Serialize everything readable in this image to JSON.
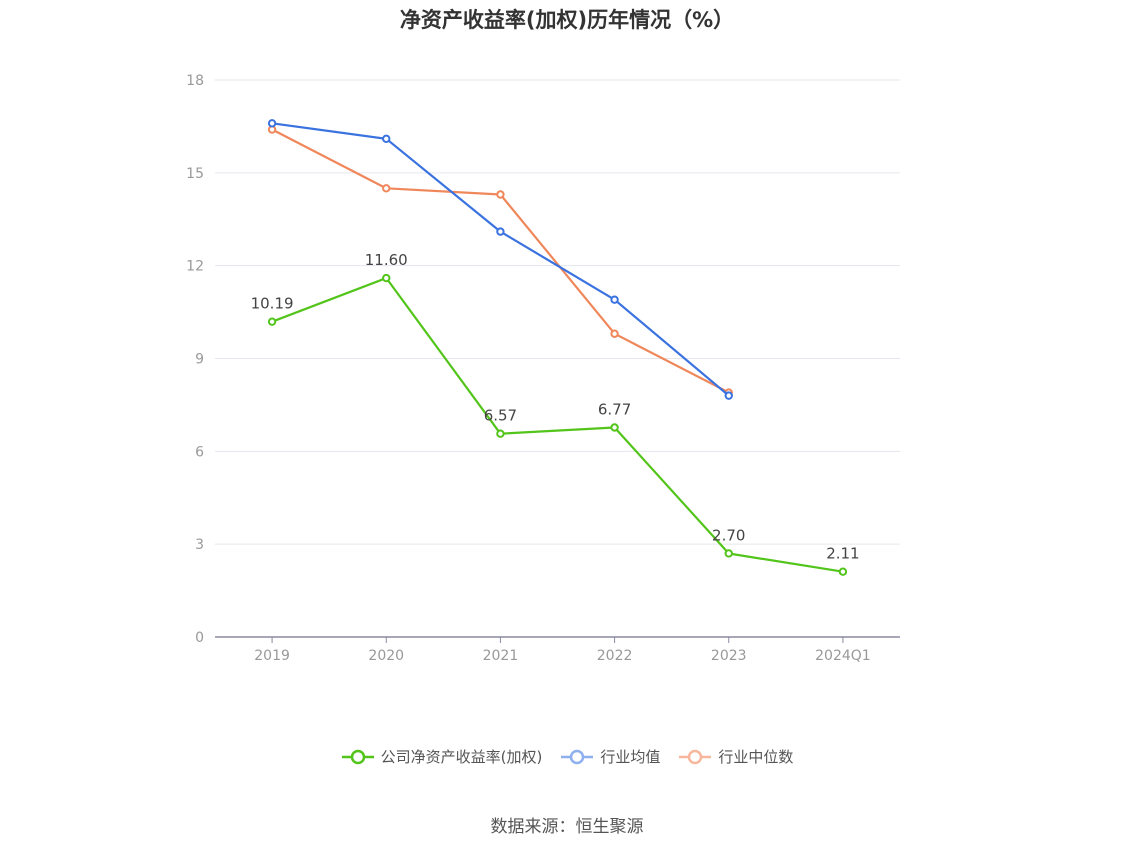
{
  "title": "净资产收益率(加权)历年情况（%）",
  "source": "数据来源：恒生聚源",
  "chart_data": {
    "type": "line",
    "categories": [
      "2019",
      "2020",
      "2021",
      "2022",
      "2023",
      "2024Q1"
    ],
    "ylim": [
      0,
      18
    ],
    "yticks": [
      0,
      3,
      6,
      9,
      12,
      15,
      18
    ],
    "grid": true,
    "legend_position": "bottom",
    "series": [
      {
        "name": "公司净资产收益率(加权)",
        "color": "#52c41a",
        "values": [
          10.19,
          11.6,
          6.57,
          6.77,
          2.7,
          2.11
        ],
        "labels": [
          "10.19",
          "11.60",
          "6.57",
          "6.77",
          "2.70",
          "2.11"
        ],
        "show_labels": true
      },
      {
        "name": "行业均值",
        "color": "#3a72e0",
        "values": [
          16.6,
          16.1,
          13.1,
          10.9,
          7.8,
          null
        ],
        "show_labels": false
      },
      {
        "name": "行业中位数",
        "color": "#f0875a",
        "values": [
          16.4,
          14.5,
          14.3,
          9.8,
          7.9,
          null
        ],
        "show_labels": false
      }
    ]
  },
  "legend_colors": [
    "#52c41a",
    "#8fb0ee",
    "#f7b79c"
  ]
}
